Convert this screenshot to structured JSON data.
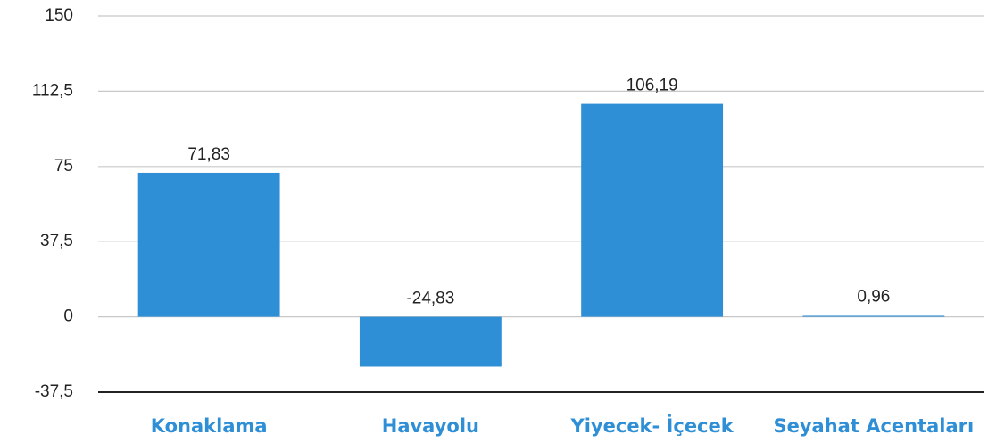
{
  "chart_data": {
    "type": "bar",
    "categories": [
      "Konaklama",
      "Havayolu",
      "Yiyecek- İçecek",
      "Seyahat Acentaları"
    ],
    "values": [
      71.83,
      -24.83,
      106.19,
      0.96
    ],
    "value_labels": [
      "71,83",
      "-24,83",
      "106,19",
      "0,96"
    ],
    "color": "#2f8fd6",
    "ylim": [
      -37.5,
      150
    ],
    "yticks": [
      150,
      {
        "value": 112.5,
        "label": "112,5"
      },
      75,
      {
        "value": 37.5,
        "label": "37,5"
      },
      0,
      {
        "value": -37.5,
        "label": "-37,5"
      }
    ],
    "grid": true
  }
}
